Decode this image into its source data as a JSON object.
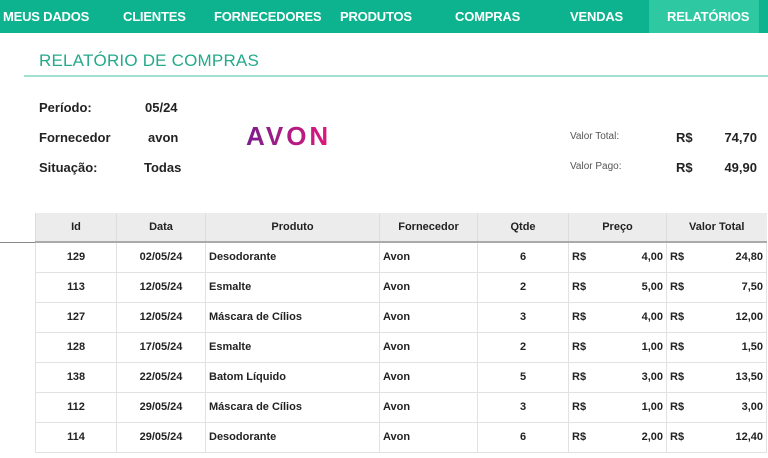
{
  "nav": {
    "items": [
      "MEUS DADOS",
      "CLIENTES",
      "FORNECEDORES",
      "PRODUTOS",
      "COMPRAS",
      "VENDAS",
      "RELATÓRIOS"
    ],
    "active": "RELATÓRIOS"
  },
  "page_title": "RELATÓRIO DE COMPRAS",
  "filters": {
    "periodo_label": "Período:",
    "periodo": "05/24",
    "fornecedor_label": "Fornecedor",
    "fornecedor": "avon",
    "situacao_label": "Situação:",
    "situacao": "Todas"
  },
  "logo": "AVON",
  "totals": {
    "valor_total_label": "Valor Total:",
    "valor_total": "74,70",
    "valor_pago_label": "Valor Pago:",
    "valor_pago": "49,90",
    "currency": "R$"
  },
  "table": {
    "headers": [
      "Id",
      "Data",
      "Produto",
      "Fornecedor",
      "Qtde",
      "Preço",
      "Valor Total"
    ],
    "rows": [
      [
        "129",
        "02/05/24",
        "Desodorante",
        "Avon",
        "6",
        "4,00",
        "24,80"
      ],
      [
        "113",
        "12/05/24",
        "Esmalte",
        "Avon",
        "2",
        "5,00",
        "7,50"
      ],
      [
        "127",
        "12/05/24",
        "Máscara de Cílios",
        "Avon",
        "3",
        "4,00",
        "12,00"
      ],
      [
        "128",
        "17/05/24",
        "Esmalte",
        "Avon",
        "2",
        "1,00",
        "1,50"
      ],
      [
        "138",
        "22/05/24",
        "Batom Líquido",
        "Avon",
        "5",
        "3,00",
        "13,50"
      ],
      [
        "112",
        "29/05/24",
        "Máscara de Cílios",
        "Avon",
        "3",
        "1,00",
        "3,00"
      ],
      [
        "114",
        "29/05/24",
        "Desodorante",
        "Avon",
        "6",
        "2,00",
        "12,40"
      ]
    ]
  },
  "colors": {
    "nav": "#0db38e",
    "nav_active": "#2ec8a2",
    "title": "#24a98a"
  }
}
